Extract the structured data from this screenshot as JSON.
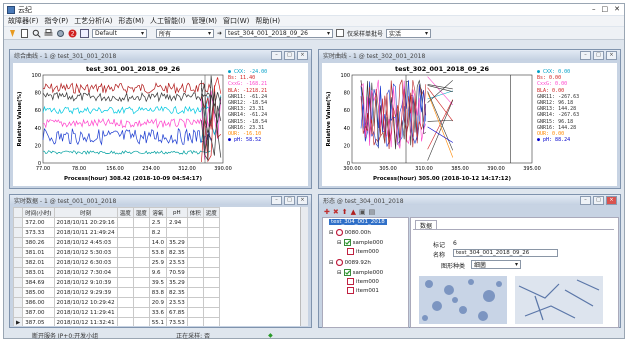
{
  "window": {
    "title": "云纪"
  },
  "menu": [
    "故障器(F)",
    "指令(P)",
    "工艺分析(A)",
    "形态(M)",
    "人工智能(I)",
    "管理(M)",
    "窗口(W)",
    "帮助(H)"
  ],
  "toolbar": {
    "profile": "Default",
    "filter": "所有",
    "file": "test_304_001_2018_09_26",
    "option_label": "仅采样单批号",
    "option_value": "实活"
  },
  "chart1": {
    "window_title": "综合曲线 - 1 @ test_301_001_2018",
    "title": "test_301_001_2018_09_26",
    "ylabel": "Relative Value(%)",
    "xlabel": "Process(hour) 308.42 (2018-10-09 04:54:17)",
    "yticks": [
      "100",
      "80",
      "60",
      "40",
      "20",
      "0"
    ],
    "xticks": [
      "77.00",
      "78.00",
      "156.00",
      "234.00",
      "312.00",
      "390.00"
    ],
    "legend": [
      "CXX: -24.00",
      "Bs: 11.40",
      "CxxG: -168.21",
      "BLA: -1218.21",
      "GNR11: -61.24",
      "GNR12: -18.54",
      "GNR13: 23.31",
      "GNR14: -61.24",
      "GNR15: -18.54",
      "GNR16: 23.31",
      "OUR: -16.10",
      "pH: 58.52"
    ],
    "legend_colors": [
      "#00a0c8",
      "#d02020",
      "#ff44cc",
      "#cc2222",
      "#333333",
      "#333333",
      "#333333",
      "#333333",
      "#333333",
      "#333333",
      "#ff8800",
      "#0000cc"
    ],
    "chart_data": {
      "type": "line",
      "title": "test_301_001_2018_09_26",
      "xlabel": "Process(hour)",
      "ylabel": "Relative Value(%)",
      "ylim": [
        0,
        100
      ],
      "xlim": [
        77,
        390
      ]
    }
  },
  "chart2": {
    "window_title": "实时曲线 - 1 @ test_302_001_2018",
    "title": "test_302_001_2018_09_26",
    "ylabel": "Relative Value(%)",
    "xlabel": "Process(hour) 305.00 (2018-10-12 14:17:12)",
    "yticks": [
      "100",
      "80",
      "60",
      "40",
      "20",
      "0"
    ],
    "xticks": [
      "300.00",
      "305.00",
      "310.00",
      "385.00",
      "390.00",
      "395.00"
    ],
    "legend": [
      "CXX: 0.00",
      "Bs: 0.00",
      "CxxG: 0.00",
      "BLA: 0.00",
      "GNR11: -267.63",
      "GNR12: 96.18",
      "GNR13: 144.28",
      "GNR14: -267.63",
      "GNR15: 96.18",
      "GNR16: 144.28",
      "OUR: 0.00",
      "pH: 88.24"
    ],
    "legend_colors": [
      "#00a0c8",
      "#d02020",
      "#ff44cc",
      "#cc2222",
      "#333333",
      "#333333",
      "#333333",
      "#333333",
      "#333333",
      "#333333",
      "#ff8800",
      "#0000cc"
    ],
    "chart_data": {
      "type": "line",
      "title": "test_302_001_2018_09_26",
      "xlabel": "Process(hour)",
      "ylabel": "Relative Value(%)",
      "ylim": [
        0,
        100
      ],
      "xlim": [
        300,
        395
      ]
    }
  },
  "table": {
    "window_title": "实时数据 - 1 @ test_001_001_2018",
    "columns": [
      "时间(小时)",
      "时刻",
      "温度",
      "湿度",
      "溶氧",
      "pH",
      "体积",
      "泥度"
    ],
    "rows": [
      [
        "372.00",
        "2018/10/11 20:29:16",
        "",
        "",
        "2.5",
        "2.94",
        "",
        ""
      ],
      [
        "373.33",
        "2018/10/11 21:49:24",
        "",
        "",
        "8.2",
        "",
        "",
        ""
      ],
      [
        "380.26",
        "2018/10/12 4:45:03",
        "",
        "",
        "14.0",
        "35.29",
        "",
        ""
      ],
      [
        "381.01",
        "2018/10/12 5:30:03",
        "",
        "",
        "53.8",
        "82.35",
        "",
        ""
      ],
      [
        "382.01",
        "2018/10/12 6:30:03",
        "",
        "",
        "25.9",
        "23.53",
        "",
        ""
      ],
      [
        "383.01",
        "2018/10/12 7:30:04",
        "",
        "",
        "9.6",
        "70.59",
        "",
        ""
      ],
      [
        "384.69",
        "2018/10/12 9:10:39",
        "",
        "",
        "39.5",
        "35.29",
        "",
        ""
      ],
      [
        "385.00",
        "2018/10/12 9:29:39",
        "",
        "",
        "83.8",
        "82.35",
        "",
        ""
      ],
      [
        "386.00",
        "2018/10/12 10:29:42",
        "",
        "",
        "20.9",
        "23.53",
        "",
        ""
      ],
      [
        "387.00",
        "2018/10/12 11:29:41",
        "",
        "",
        "33.6",
        "67.85",
        "",
        ""
      ],
      [
        "387.05",
        "2018/10/12 11:32:41",
        "",
        "",
        "55.1",
        "73.53",
        "",
        ""
      ]
    ]
  },
  "morph": {
    "window_title": "形态 @ test_304_001_2018",
    "tree": [
      "test_304_001_2018",
      "0080.00h",
      "sample000",
      "item000",
      "0089.92h",
      "sample000",
      "item000",
      "item001"
    ],
    "tab": "数据",
    "tag_label": "标记",
    "tag_value": "6",
    "name_label": "名称",
    "name_value": "test_304_001_2018_09_26",
    "type_label": "图形种类",
    "type_value": "细菌"
  },
  "status": {
    "left": "断开服务 IP+0:开发小组",
    "mid": "正在采样: 否"
  }
}
